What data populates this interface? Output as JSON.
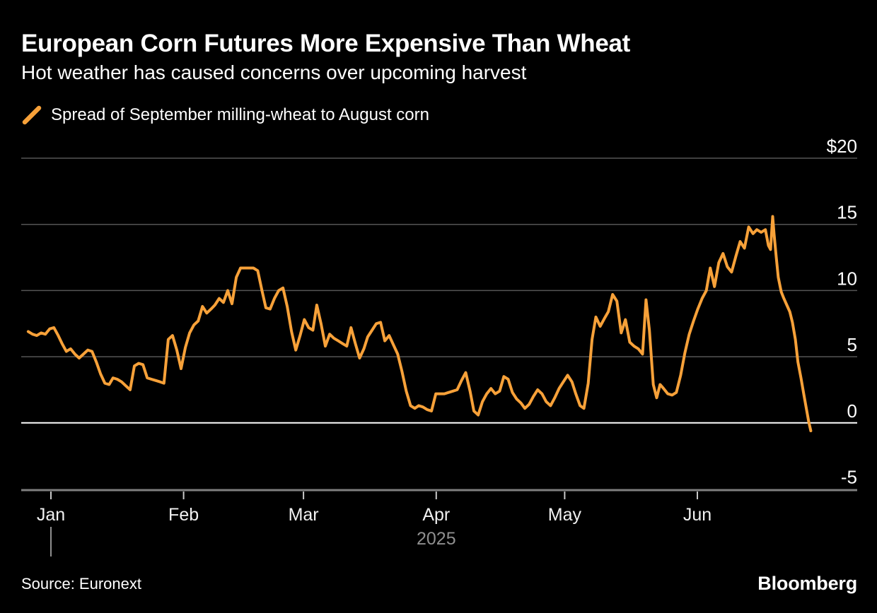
{
  "header": {
    "title": "European Corn Futures More Expensive Than Wheat",
    "subtitle": "Hot weather has caused concerns over upcoming harvest"
  },
  "legend": {
    "label": "Spread of September milling-wheat to August corn"
  },
  "footer": {
    "source": "Source: Euronext",
    "logo": "Bloomberg"
  },
  "colors": {
    "background": "#000000",
    "text": "#FFFFFF",
    "accent": "#F7A139",
    "grid": "#555555",
    "zero_line": "#FFFFFF",
    "axis_line": "#7F7F7F",
    "tick_mark": "#C9C9C9",
    "month_label": "#F1F1F1",
    "muted_text": "#8F8F8F"
  },
  "chart_data": {
    "type": "line",
    "title": "European Corn Futures More Expensive Than Wheat",
    "subtitle": "Hot weather has caused concerns over upcoming harvest",
    "grid": "horizontal",
    "legend_position": "top-left",
    "y_axis": {
      "side": "right",
      "ylim": [
        -5,
        20
      ],
      "unit_prefix": "$",
      "zero_line": true,
      "ticks": [
        {
          "label": "$20",
          "value": 20
        },
        {
          "label": "15",
          "value": 15
        },
        {
          "label": "10",
          "value": 10
        },
        {
          "label": "5",
          "value": 5
        },
        {
          "label": "0",
          "value": 0
        },
        {
          "label": "-5",
          "value": -5
        }
      ]
    },
    "x_axis": {
      "description": "days relative to Jan 1 2025",
      "domain_days": [
        -5.3,
        177.5
      ],
      "ticks": [
        {
          "label": "Jan",
          "day": 0
        },
        {
          "label": "Feb",
          "day": 31
        },
        {
          "label": "Mar",
          "day": 59
        },
        {
          "label": "Apr",
          "day": 90
        },
        {
          "label": "May",
          "day": 120
        },
        {
          "label": "Jun",
          "day": 151
        }
      ],
      "year_label": "2025",
      "year_label_day": 90,
      "year_marker_day": 0
    },
    "series": [
      {
        "name": "Spread of September milling-wheat to August corn",
        "color": "#F7A139",
        "points": [
          [
            -5.3,
            6.9
          ],
          [
            -4.3,
            6.7
          ],
          [
            -3.3,
            6.6
          ],
          [
            -2.3,
            6.8
          ],
          [
            -1.3,
            6.7
          ],
          [
            -0.3,
            7.1
          ],
          [
            0.7,
            7.2
          ],
          [
            1.7,
            6.6
          ],
          [
            2.6,
            6.0
          ],
          [
            3.6,
            5.4
          ],
          [
            4.6,
            5.6
          ],
          [
            5.6,
            5.2
          ],
          [
            6.6,
            4.9
          ],
          [
            7.6,
            5.2
          ],
          [
            8.6,
            5.5
          ],
          [
            9.6,
            5.4
          ],
          [
            10.6,
            4.6
          ],
          [
            11.6,
            3.7
          ],
          [
            12.6,
            3.0
          ],
          [
            13.6,
            2.9
          ],
          [
            14.5,
            3.4
          ],
          [
            15.5,
            3.3
          ],
          [
            16.5,
            3.1
          ],
          [
            17.5,
            2.8
          ],
          [
            18.5,
            2.5
          ],
          [
            19.5,
            4.3
          ],
          [
            20.5,
            4.5
          ],
          [
            21.5,
            4.4
          ],
          [
            22.5,
            3.4
          ],
          [
            23.5,
            3.3
          ],
          [
            24.5,
            3.2
          ],
          [
            25.5,
            3.1
          ],
          [
            26.4,
            3.0
          ],
          [
            27.4,
            6.3
          ],
          [
            28.4,
            6.6
          ],
          [
            29.4,
            5.5
          ],
          [
            30.4,
            4.1
          ],
          [
            31.4,
            5.7
          ],
          [
            32.4,
            6.8
          ],
          [
            33.4,
            7.4
          ],
          [
            34.4,
            7.7
          ],
          [
            35.4,
            8.8
          ],
          [
            36.4,
            8.3
          ],
          [
            37.4,
            8.6
          ],
          [
            38.3,
            8.9
          ],
          [
            39.3,
            9.4
          ],
          [
            40.3,
            9.1
          ],
          [
            41.3,
            10.0
          ],
          [
            42.3,
            9.0
          ],
          [
            43.3,
            11.0
          ],
          [
            44.3,
            11.7
          ],
          [
            45.3,
            11.7
          ],
          [
            46.3,
            11.7
          ],
          [
            47.3,
            11.7
          ],
          [
            48.3,
            11.5
          ],
          [
            49.3,
            10.0
          ],
          [
            50.2,
            8.7
          ],
          [
            51.2,
            8.6
          ],
          [
            52.2,
            9.4
          ],
          [
            53.2,
            10.0
          ],
          [
            54.2,
            10.2
          ],
          [
            55.2,
            8.8
          ],
          [
            56.2,
            6.9
          ],
          [
            57.2,
            5.5
          ],
          [
            58.2,
            6.6
          ],
          [
            59.2,
            7.8
          ],
          [
            60.2,
            7.2
          ],
          [
            61.2,
            7.0
          ],
          [
            62.1,
            8.9
          ],
          [
            63.1,
            7.5
          ],
          [
            64.1,
            5.8
          ],
          [
            65.1,
            6.7
          ],
          [
            66.1,
            6.4
          ],
          [
            67.1,
            6.2
          ],
          [
            68.1,
            6.0
          ],
          [
            69.1,
            5.8
          ],
          [
            70.1,
            7.2
          ],
          [
            71.1,
            6.0
          ],
          [
            72.1,
            4.9
          ],
          [
            73.1,
            5.6
          ],
          [
            74.0,
            6.5
          ],
          [
            75.0,
            7.0
          ],
          [
            76.0,
            7.5
          ],
          [
            77.0,
            7.6
          ],
          [
            78.0,
            6.2
          ],
          [
            79.0,
            6.6
          ],
          [
            80.0,
            5.9
          ],
          [
            81.0,
            5.2
          ],
          [
            82.0,
            3.9
          ],
          [
            83.0,
            2.4
          ],
          [
            84.0,
            1.3
          ],
          [
            85.0,
            1.1
          ],
          [
            85.9,
            1.3
          ],
          [
            86.9,
            1.2
          ],
          [
            87.9,
            1.0
          ],
          [
            88.9,
            0.9
          ],
          [
            89.9,
            2.2
          ],
          [
            90.9,
            2.2
          ],
          [
            91.9,
            2.2
          ],
          [
            92.9,
            2.3
          ],
          [
            93.9,
            2.4
          ],
          [
            94.9,
            2.5
          ],
          [
            95.9,
            3.2
          ],
          [
            96.9,
            3.8
          ],
          [
            97.9,
            2.4
          ],
          [
            98.8,
            0.9
          ],
          [
            99.8,
            0.6
          ],
          [
            100.8,
            1.6
          ],
          [
            101.8,
            2.2
          ],
          [
            102.8,
            2.6
          ],
          [
            103.8,
            2.2
          ],
          [
            104.8,
            2.4
          ],
          [
            105.8,
            3.5
          ],
          [
            106.8,
            3.3
          ],
          [
            107.8,
            2.3
          ],
          [
            108.8,
            1.8
          ],
          [
            109.8,
            1.5
          ],
          [
            110.7,
            1.1
          ],
          [
            111.7,
            1.4
          ],
          [
            112.7,
            2.0
          ],
          [
            113.7,
            2.5
          ],
          [
            114.7,
            2.2
          ],
          [
            115.7,
            1.6
          ],
          [
            116.7,
            1.3
          ],
          [
            117.7,
            1.9
          ],
          [
            118.7,
            2.6
          ],
          [
            119.7,
            3.1
          ],
          [
            120.7,
            3.6
          ],
          [
            121.7,
            3.1
          ],
          [
            122.6,
            2.2
          ],
          [
            123.6,
            1.3
          ],
          [
            124.5,
            1.1
          ],
          [
            125.5,
            3.0
          ],
          [
            126.4,
            6.3
          ],
          [
            127.3,
            8.0
          ],
          [
            128.3,
            7.3
          ],
          [
            129.3,
            7.9
          ],
          [
            130.2,
            8.4
          ],
          [
            131.2,
            9.7
          ],
          [
            132.2,
            9.2
          ],
          [
            133.2,
            6.8
          ],
          [
            134.2,
            7.8
          ],
          [
            135.2,
            6.1
          ],
          [
            136.2,
            5.8
          ],
          [
            137.2,
            5.6
          ],
          [
            138.2,
            5.2
          ],
          [
            139.0,
            9.3
          ],
          [
            139.8,
            7.0
          ],
          [
            140.7,
            2.9
          ],
          [
            141.5,
            1.9
          ],
          [
            142.3,
            2.9
          ],
          [
            143.1,
            2.6
          ],
          [
            144.1,
            2.2
          ],
          [
            145.1,
            2.1
          ],
          [
            146.1,
            2.3
          ],
          [
            147.1,
            3.6
          ],
          [
            148.1,
            5.3
          ],
          [
            149.1,
            6.7
          ],
          [
            150.1,
            7.7
          ],
          [
            151.1,
            8.6
          ],
          [
            152.1,
            9.4
          ],
          [
            153.1,
            10.0
          ],
          [
            154.0,
            11.7
          ],
          [
            155.0,
            10.3
          ],
          [
            156.0,
            12.1
          ],
          [
            157.0,
            12.8
          ],
          [
            158.0,
            11.8
          ],
          [
            159.0,
            11.4
          ],
          [
            160.0,
            12.6
          ],
          [
            161.0,
            13.7
          ],
          [
            162.0,
            13.2
          ],
          [
            163.0,
            14.8
          ],
          [
            164.0,
            14.3
          ],
          [
            164.9,
            14.6
          ],
          [
            165.9,
            14.4
          ],
          [
            166.9,
            14.6
          ],
          [
            167.6,
            13.4
          ],
          [
            168.1,
            13.1
          ],
          [
            168.6,
            15.6
          ],
          [
            168.9,
            14.3
          ],
          [
            169.4,
            12.6
          ],
          [
            169.9,
            11.0
          ],
          [
            170.6,
            9.9
          ],
          [
            171.2,
            9.4
          ],
          [
            171.9,
            8.9
          ],
          [
            172.6,
            8.4
          ],
          [
            173.2,
            7.6
          ],
          [
            173.9,
            6.3
          ],
          [
            174.5,
            4.6
          ],
          [
            175.2,
            3.4
          ],
          [
            175.9,
            2.1
          ],
          [
            176.5,
            1.0
          ],
          [
            177.0,
            0.1
          ],
          [
            177.5,
            -0.6
          ]
        ]
      }
    ]
  }
}
